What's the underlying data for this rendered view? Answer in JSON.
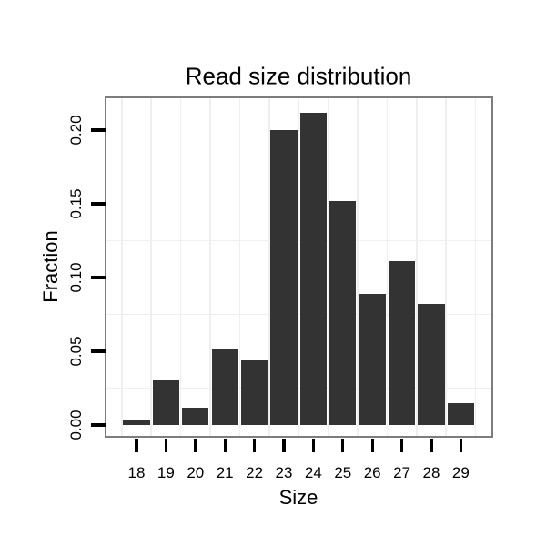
{
  "chart_data": {
    "type": "bar",
    "title": "Read size distribution",
    "xlabel": "Size",
    "ylabel": "Fraction",
    "categories": [
      18,
      19,
      20,
      21,
      22,
      23,
      24,
      25,
      26,
      27,
      28,
      29
    ],
    "values": [
      0.003,
      0.03,
      0.012,
      0.052,
      0.044,
      0.2,
      0.212,
      0.152,
      0.089,
      0.111,
      0.082,
      0.015
    ],
    "x_tick_labels": [
      "18",
      "19",
      "20",
      "21",
      "22",
      "23",
      "24",
      "25",
      "26",
      "27",
      "28",
      "29"
    ],
    "y_ticks": [
      0.0,
      0.05,
      0.1,
      0.15,
      0.2
    ],
    "y_tick_labels": [
      "0.00",
      "0.05",
      "0.10",
      "0.15",
      "0.20"
    ],
    "ylim": [
      -0.007,
      0.222
    ],
    "xlim": [
      17.0,
      30.0
    ],
    "minor_grid_y": [
      0.025,
      0.075,
      0.125,
      0.175
    ],
    "minor_grid_x": [
      17.5,
      18.5,
      19.5,
      20.5,
      21.5,
      22.5,
      23.5,
      24.5,
      25.5,
      26.5,
      27.5,
      28.5,
      29.5
    ],
    "grid": "minor-gridlines-only",
    "legend_position": "none",
    "bar_width_fraction": 0.9
  },
  "colors": {
    "background": "#ffffff",
    "bar": "#333333",
    "panel_border": "#7d7d7d",
    "gridline": "#efefef",
    "tick": "#000000",
    "text": "#000000"
  }
}
